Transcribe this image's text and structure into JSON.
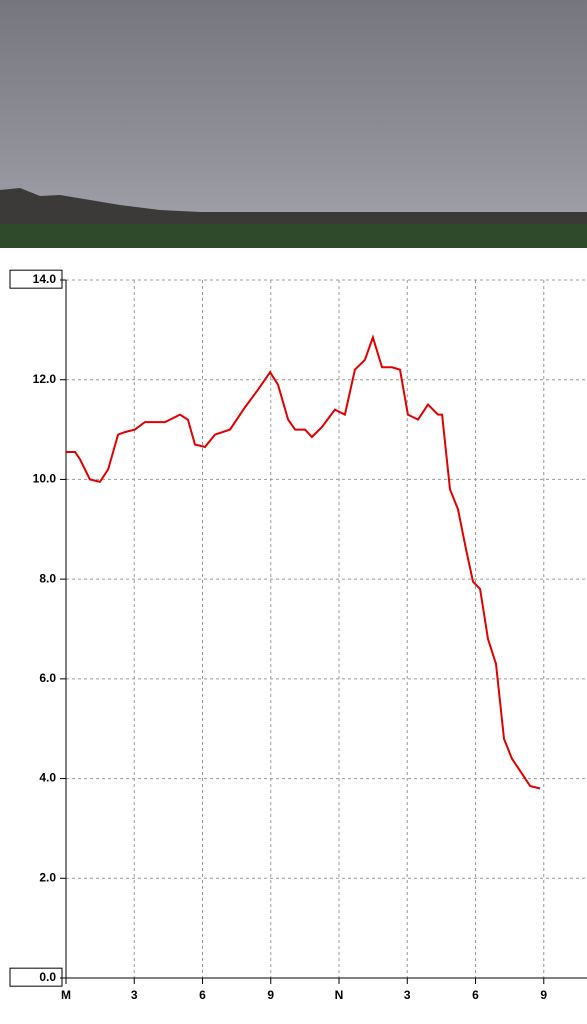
{
  "chart_data": {
    "type": "line",
    "x": [
      0,
      0.4,
      0.62,
      1.05,
      1.49,
      1.85,
      2.29,
      2.59,
      3.03,
      3.47,
      3.91,
      4.35,
      5.01,
      5.36,
      5.67,
      6.11,
      6.55,
      7.21,
      7.87,
      8.44,
      8.97,
      9.32,
      9.76,
      10.07,
      10.51,
      10.81,
      11.25,
      11.82,
      12.26,
      12.7,
      13.14,
      13.49,
      13.89,
      14.33,
      14.68,
      15.03,
      15.47,
      15.91,
      16.35,
      16.53,
      16.88,
      17.23,
      17.58,
      17.89,
      18.2,
      18.55,
      18.9,
      19.25,
      19.6,
      20.04,
      20.4,
      20.84
    ],
    "values": [
      10.55,
      10.55,
      10.4,
      10.0,
      9.95,
      10.2,
      10.9,
      10.95,
      11.0,
      11.15,
      11.15,
      11.15,
      11.3,
      11.2,
      10.7,
      10.65,
      10.9,
      11.0,
      11.45,
      11.8,
      12.15,
      11.9,
      11.2,
      11.0,
      11.0,
      10.85,
      11.05,
      11.4,
      11.3,
      12.2,
      12.4,
      12.85,
      12.25,
      12.25,
      12.2,
      11.3,
      11.2,
      11.5,
      11.3,
      11.3,
      9.8,
      9.4,
      8.6,
      7.95,
      7.8,
      6.8,
      6.3,
      4.8,
      4.4,
      4.1,
      3.85,
      3.8
    ],
    "color": "#e00000",
    "xlim": [
      0,
      22.9
    ],
    "xticks": [
      {
        "value": 0,
        "label": "M"
      },
      3,
      6,
      9,
      {
        "value": 12,
        "label": "N"
      },
      {
        "value": 15,
        "label": "3"
      },
      {
        "value": 18,
        "label": "6"
      },
      {
        "value": 21,
        "label": "9"
      }
    ],
    "ylim": [
      0,
      14
    ],
    "yticks": [
      {
        "value": 0,
        "label": "0.0"
      },
      {
        "value": 2,
        "label": "2.0"
      },
      {
        "value": 4,
        "label": "4.0"
      },
      {
        "value": 6,
        "label": "6.0"
      },
      {
        "value": 8,
        "label": "8.0"
      },
      {
        "value": 10,
        "label": "10.0"
      },
      {
        "value": 12,
        "label": "12.0"
      },
      {
        "value": 14,
        "label": "14.0"
      }
    ],
    "grid": true
  }
}
